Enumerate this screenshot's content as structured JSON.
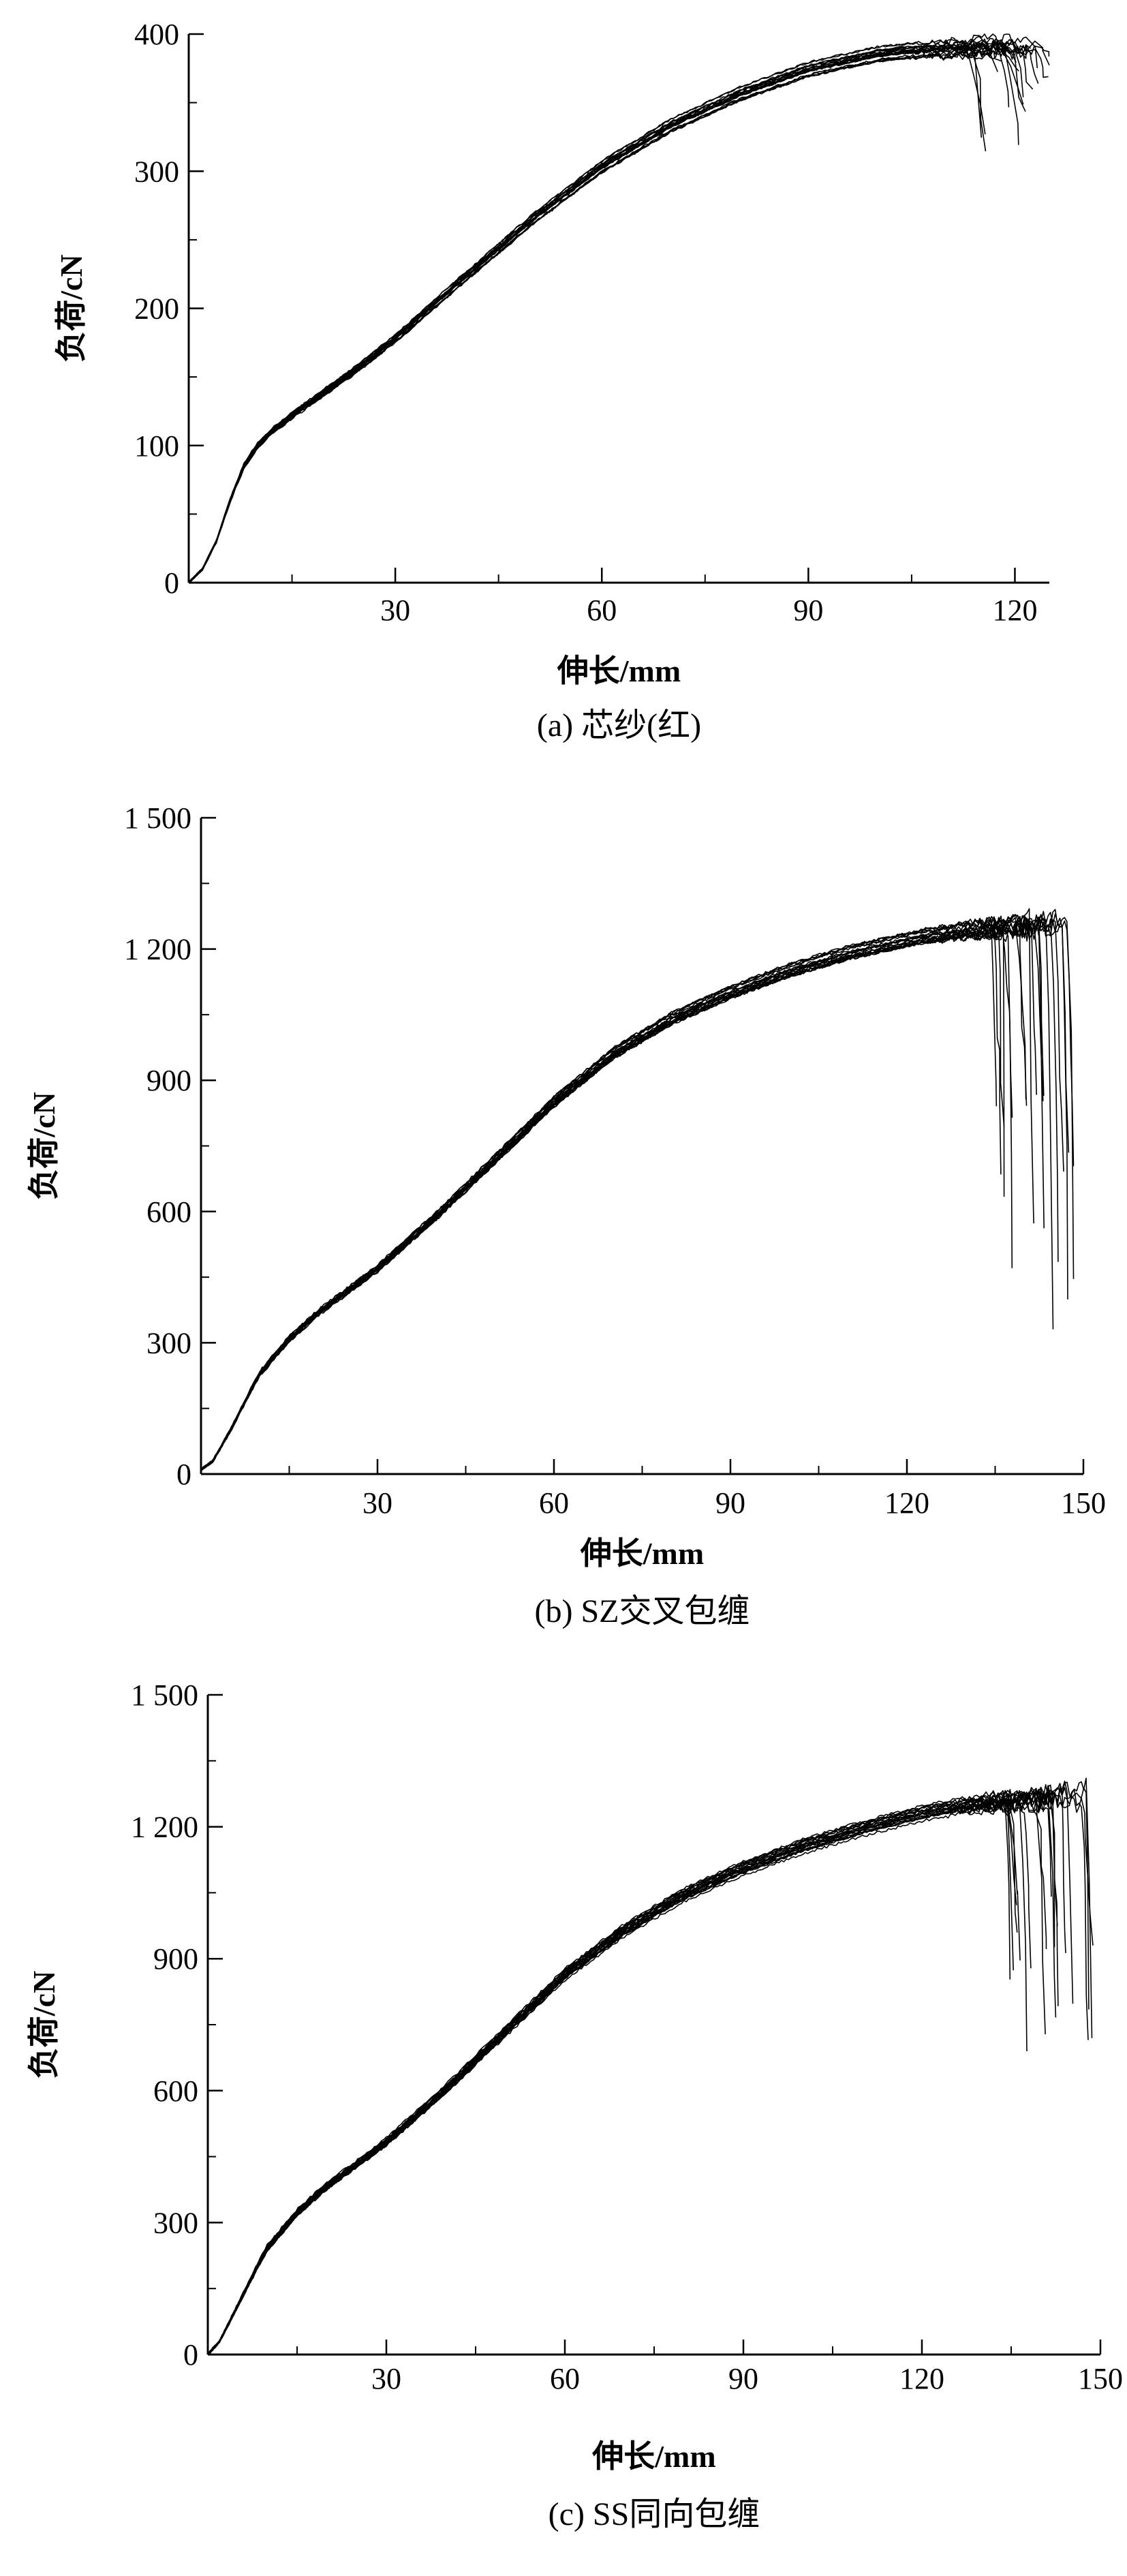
{
  "figure": {
    "panels": [
      {
        "caption": "(a) 芯纱(红)",
        "xlabel": "伸长/mm",
        "ylabel": "负荷/cN"
      },
      {
        "caption": "(b) SZ交叉包缠",
        "xlabel": "伸长/mm",
        "ylabel": "负荷/cN"
      },
      {
        "caption": "(c) SS同向包缠",
        "xlabel": "伸长/mm",
        "ylabel": "负荷/cN"
      }
    ]
  },
  "chart_data": [
    {
      "type": "line",
      "title": "",
      "caption": "(a) 芯纱(红)",
      "xlabel": "伸长/mm",
      "ylabel": "负荷/cN",
      "xlim": [
        0,
        125
      ],
      "ylim": [
        0,
        400
      ],
      "x_ticks": [
        30,
        60,
        90,
        120
      ],
      "x_tick_labels": [
        "30",
        "60",
        "90",
        "120"
      ],
      "y_ticks": [
        0,
        100,
        200,
        300,
        400
      ],
      "y_tick_labels": [
        "0",
        "100",
        "200",
        "300",
        "400"
      ],
      "grid": false,
      "legend": "none",
      "series_count": 20,
      "mean_curve": {
        "x": [
          0,
          2,
          4,
          6,
          8,
          10,
          12,
          15,
          20,
          25,
          30,
          40,
          50,
          60,
          70,
          80,
          90,
          100,
          105
        ],
        "y": [
          0,
          10,
          30,
          60,
          85,
          100,
          110,
          122,
          140,
          158,
          178,
          222,
          265,
          303,
          333,
          356,
          374,
          385,
          388
        ]
      },
      "break_elongation_range": [
        103,
        123
      ],
      "break_load_range": [
        290,
        405
      ]
    },
    {
      "type": "line",
      "title": "",
      "caption": "(b) SZ交叉包缠",
      "xlabel": "伸长/mm",
      "ylabel": "负荷/cN",
      "xlim": [
        0,
        150
      ],
      "ylim": [
        0,
        1500
      ],
      "x_ticks": [
        30,
        60,
        90,
        120,
        150
      ],
      "x_tick_labels": [
        "30",
        "60",
        "90",
        "120",
        "150"
      ],
      "y_ticks": [
        0,
        300,
        600,
        900,
        1200,
        1500
      ],
      "y_tick_labels": [
        "0",
        "300",
        "600",
        "900",
        "1 200",
        "1 500"
      ],
      "grid": false,
      "legend": "none",
      "series_count": 20,
      "mean_curve": {
        "x": [
          0,
          2,
          5,
          8,
          10,
          15,
          20,
          25,
          30,
          40,
          50,
          60,
          70,
          80,
          90,
          100,
          110,
          120,
          130,
          140,
          145
        ],
        "y": [
          10,
          30,
          100,
          180,
          230,
          310,
          370,
          420,
          470,
          590,
          720,
          850,
          960,
          1040,
          1100,
          1150,
          1190,
          1220,
          1250,
          1275,
          1290
        ]
      },
      "break_elongation_range": [
        122,
        148
      ],
      "break_load_range": [
        290,
        1300
      ]
    },
    {
      "type": "line",
      "title": "",
      "caption": "(c) SS同向包缠",
      "xlabel": "伸长/mm",
      "ylabel": "负荷/cN",
      "xlim": [
        0,
        150
      ],
      "ylim": [
        0,
        1500
      ],
      "x_ticks": [
        30,
        60,
        90,
        120,
        150
      ],
      "x_tick_labels": [
        "30",
        "60",
        "90",
        "120",
        "150"
      ],
      "y_ticks": [
        0,
        300,
        600,
        900,
        1200,
        1500
      ],
      "y_tick_labels": [
        "0",
        "300",
        "600",
        "900",
        "1 200",
        "1 500"
      ],
      "grid": false,
      "legend": "none",
      "series_count": 20,
      "mean_curve": {
        "x": [
          0,
          2,
          5,
          8,
          10,
          15,
          20,
          25,
          30,
          40,
          50,
          60,
          70,
          80,
          90,
          100,
          110,
          120,
          130,
          140,
          147
        ],
        "y": [
          0,
          30,
          110,
          190,
          240,
          320,
          380,
          430,
          480,
          600,
          730,
          860,
          960,
          1040,
          1100,
          1150,
          1190,
          1225,
          1255,
          1275,
          1290
        ]
      },
      "break_elongation_range": [
        122,
        148
      ],
      "break_load_range": [
        540,
        1300
      ]
    }
  ]
}
